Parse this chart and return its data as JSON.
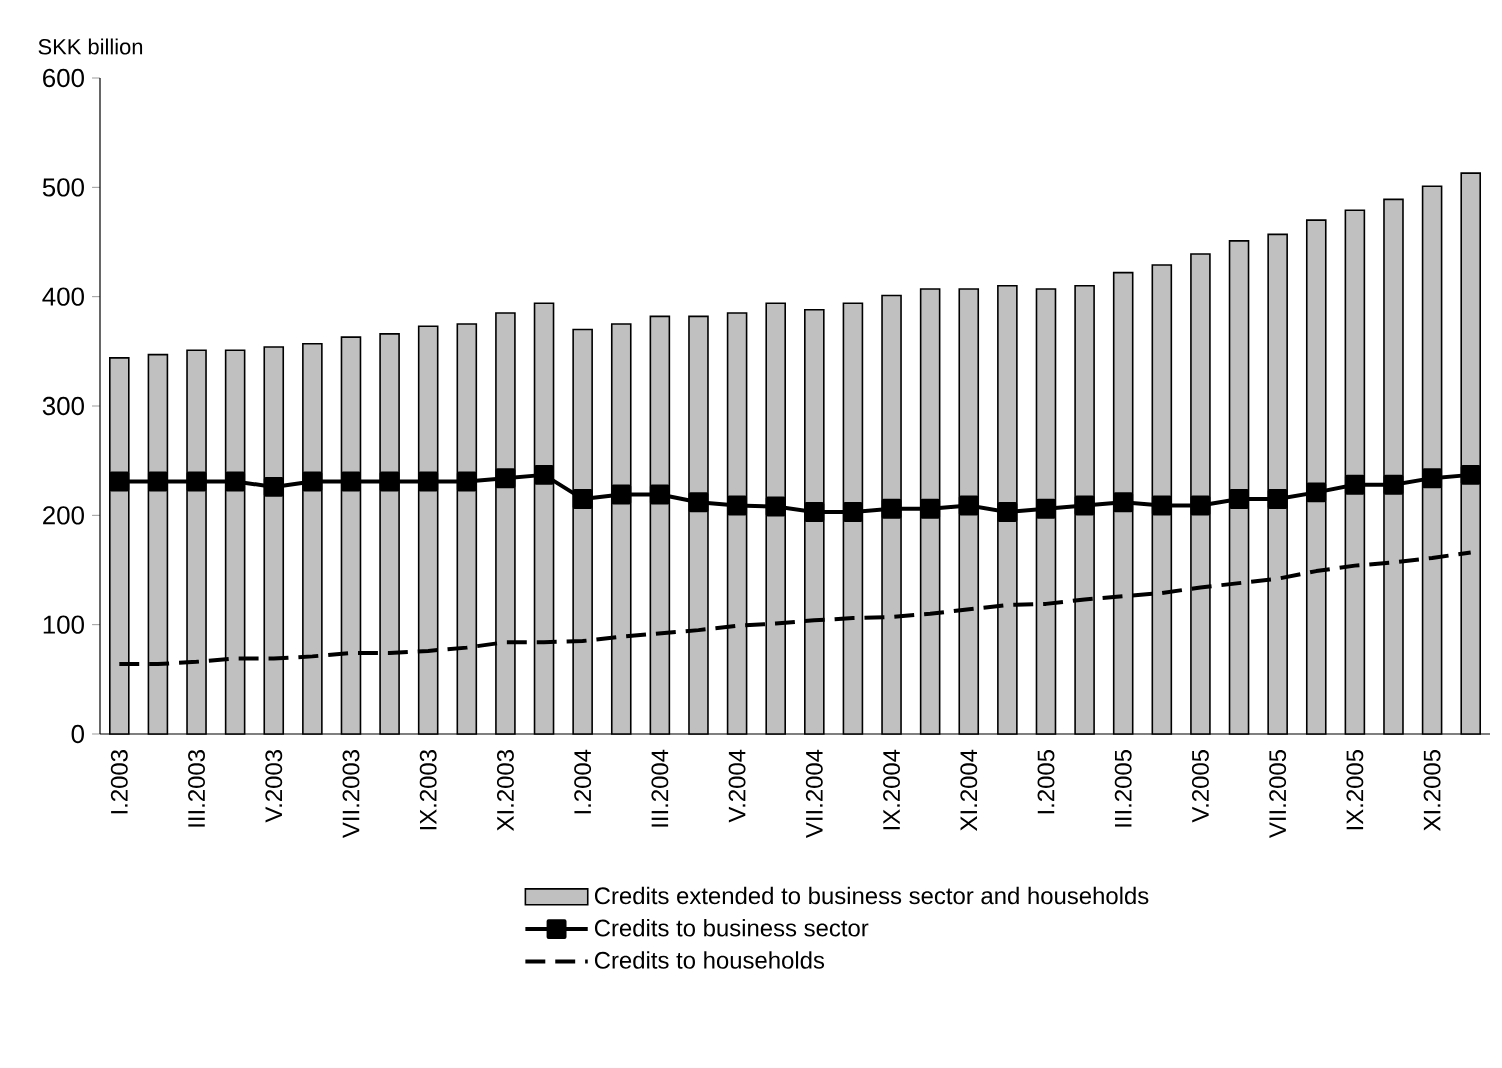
{
  "chart_data": {
    "type": "bar",
    "ylabel": "SKK billion",
    "categories": [
      "I.2003",
      null,
      "III.2003",
      null,
      "V.2003",
      null,
      "VII.2003",
      null,
      "IX.2003",
      null,
      "XI.2003",
      null,
      "I.2004",
      null,
      "III.2004",
      null,
      "V.2004",
      null,
      "VII.2004",
      null,
      "IX.2004",
      null,
      "XI.2004",
      null,
      "I.2005",
      null,
      "III.2005",
      null,
      "V.2005",
      null,
      "VII.2005",
      null,
      "IX.2005",
      null,
      "XI.2005",
      null
    ],
    "series": [
      {
        "name": "Credits extended to business sector and households",
        "color": "#c0c0c0",
        "values": [
          344,
          347,
          351,
          351,
          354,
          357,
          363,
          366,
          373,
          375,
          385,
          394,
          370,
          375,
          382,
          382,
          385,
          394,
          388,
          394,
          401,
          407,
          407,
          410,
          407,
          410,
          422,
          429,
          439,
          451,
          457,
          470,
          479,
          489,
          501,
          513
        ]
      },
      {
        "name": "Credits to business sector",
        "type": "line",
        "color": "#000000",
        "marker": "square",
        "line_style": "solid",
        "values": [
          231,
          231,
          231,
          231,
          226,
          231,
          231,
          231,
          231,
          231,
          234,
          237,
          215,
          219,
          219,
          212,
          209,
          208,
          203,
          203,
          206,
          206,
          209,
          203,
          206,
          209,
          212,
          209,
          209,
          215,
          215,
          221,
          228,
          228,
          234,
          237
        ]
      },
      {
        "name": "Credits to households",
        "type": "line",
        "color": "#000000",
        "marker": "none",
        "line_style": "dashed",
        "values": [
          64,
          64,
          66,
          69,
          69,
          71,
          74,
          74,
          76,
          79,
          84,
          84,
          85,
          89,
          92,
          95,
          99,
          101,
          104,
          106,
          107,
          110,
          114,
          118,
          119,
          123,
          126,
          129,
          134,
          138,
          142,
          149,
          154,
          157,
          161,
          166
        ]
      }
    ],
    "ylim": [
      0,
      600
    ],
    "yticks": [
      0,
      100,
      200,
      300,
      400,
      500,
      600
    ],
    "legend": "bottom"
  }
}
